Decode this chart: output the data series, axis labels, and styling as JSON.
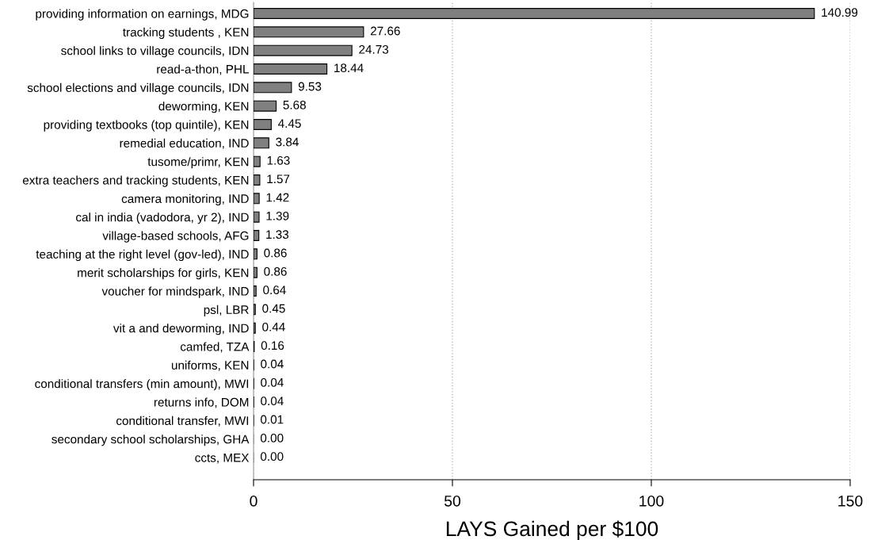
{
  "chart_data": {
    "type": "bar",
    "orientation": "horizontal",
    "xlabel": "LAYS Gained per $100",
    "categories": [
      "providing information on earnings, MDG",
      "tracking students , KEN",
      "school links to village councils, IDN",
      "read-a-thon, PHL",
      "school elections and village councils, IDN",
      "deworming, KEN",
      "providing textbooks (top quintile), KEN",
      "remedial education, IND",
      "tusome/primr, KEN",
      "extra teachers and tracking students, KEN",
      "camera monitoring, IND",
      "cal in india (vadodora, yr 2), IND",
      "village-based schools, AFG",
      "teaching at the right level (gov-led), IND",
      "merit scholarships for girls, KEN",
      "voucher for mindspark, IND",
      "psl, LBR",
      "vit a and deworming, IND",
      "camfed, TZA",
      "uniforms, KEN",
      "conditional transfers (min amount), MWI",
      "returns info, DOM",
      "conditional transfer, MWI",
      "secondary school scholarships, GHA",
      "ccts, MEX"
    ],
    "values": [
      140.99,
      27.66,
      24.73,
      18.44,
      9.53,
      5.68,
      4.45,
      3.84,
      1.63,
      1.57,
      1.42,
      1.39,
      1.33,
      0.86,
      0.86,
      0.64,
      0.45,
      0.44,
      0.16,
      0.04,
      0.04,
      0.04,
      0.01,
      0.0,
      0.0
    ],
    "value_labels": [
      "140.99",
      "27.66",
      "24.73",
      "18.44",
      "9.53",
      "5.68",
      "4.45",
      "3.84",
      "1.63",
      "1.57",
      "1.42",
      "1.39",
      "1.33",
      "0.86",
      "0.86",
      "0.64",
      "0.45",
      "0.44",
      "0.16",
      "0.04",
      "0.04",
      "0.04",
      "0.01",
      "0.00",
      "0.00"
    ],
    "color": "#808080",
    "xlim": [
      0,
      150
    ],
    "xticks": [
      0,
      50,
      100,
      150
    ],
    "grid": "x",
    "legend": false
  }
}
